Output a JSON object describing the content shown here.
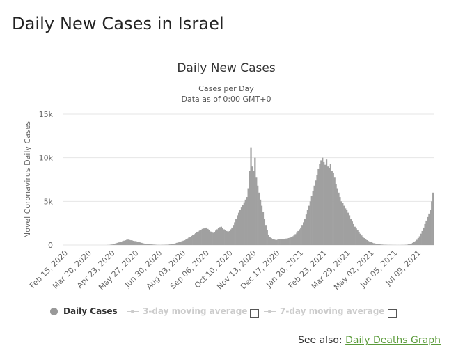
{
  "page": {
    "title": "Daily New Cases in Israel",
    "see_also_prefix": "See also:",
    "see_also_link": "Daily Deaths Graph"
  },
  "legend": {
    "daily": "Daily Cases",
    "ma3": "3-day moving average",
    "ma7": "7-day moving average"
  },
  "colors": {
    "bar": "#a0a0a0",
    "grid": "#e6e6e6",
    "link": "#5b9b3a"
  },
  "chart_data": {
    "type": "bar",
    "title": "Daily New Cases",
    "subtitle": "Cases per Day",
    "subtitle2": "Data as of 0:00 GMT+0",
    "ylabel": "Novel Coronavirus Daily Cases",
    "xlabel": "",
    "ylim": [
      0,
      15000
    ],
    "y_ticks": [
      0,
      5000,
      10000,
      15000
    ],
    "y_tick_labels": [
      "0",
      "5k",
      "10k",
      "15k"
    ],
    "x_tick_labels": [
      "Feb 15, 2020",
      "Mar 20, 2020",
      "Apr 23, 2020",
      "May 27, 2020",
      "Jun 30, 2020",
      "Aug 03, 2020",
      "Sep 06, 2020",
      "Oct 10, 2020",
      "Nov 13, 2020",
      "Dec 17, 2020",
      "Jan 20, 2021",
      "Feb 23, 2021",
      "Mar 29, 2021",
      "May 02, 2021",
      "Jun 05, 2021",
      "Jul 09, 2021"
    ],
    "start_date": "Feb 15, 2020",
    "interval_days": 34,
    "series": [
      {
        "name": "Daily Cases",
        "values": [
          0,
          0,
          0,
          0,
          0,
          0,
          0,
          0,
          0,
          0,
          0,
          0,
          0,
          0,
          0,
          0,
          0,
          0,
          0,
          0,
          0,
          0,
          0,
          0,
          0,
          0,
          0,
          0,
          0,
          0,
          0,
          0,
          0,
          10,
          20,
          40,
          60,
          100,
          150,
          200,
          250,
          300,
          350,
          400,
          450,
          500,
          550,
          600,
          620,
          580,
          550,
          520,
          480,
          450,
          420,
          380,
          340,
          300,
          250,
          200,
          170,
          150,
          120,
          100,
          80,
          70,
          60,
          50,
          40,
          30,
          20,
          15,
          15,
          20,
          25,
          30,
          35,
          40,
          50,
          70,
          100,
          130,
          160,
          200,
          250,
          300,
          350,
          400,
          450,
          500,
          550,
          650,
          750,
          850,
          950,
          1050,
          1150,
          1250,
          1350,
          1450,
          1550,
          1650,
          1750,
          1850,
          1900,
          1950,
          2000,
          1850,
          1700,
          1550,
          1450,
          1400,
          1500,
          1650,
          1800,
          1950,
          2050,
          2100,
          1950,
          1800,
          1700,
          1600,
          1500,
          1600,
          1800,
          2000,
          2300,
          2600,
          3000,
          3400,
          3700,
          4000,
          4300,
          4600,
          4900,
          5200,
          5500,
          6500,
          8500,
          11200,
          9000,
          8500,
          10000,
          7800,
          6800,
          6000,
          5200,
          4500,
          3800,
          3000,
          2300,
          1700,
          1200,
          950,
          800,
          700,
          650,
          600,
          580,
          620,
          640,
          660,
          680,
          700,
          720,
          740,
          760,
          800,
          850,
          900,
          1000,
          1100,
          1250,
          1400,
          1600,
          1800,
          2000,
          2300,
          2600,
          3000,
          3500,
          4000,
          4500,
          5000,
          5600,
          6200,
          6800,
          7400,
          8000,
          8700,
          9300,
          9700,
          10000,
          9500,
          9200,
          9800,
          9000,
          8800,
          9300,
          8500,
          8300,
          7800,
          7000,
          6500,
          6000,
          5500,
          5000,
          4800,
          4500,
          4200,
          4000,
          3700,
          3400,
          3000,
          2700,
          2400,
          2100,
          1900,
          1700,
          1500,
          1300,
          1100,
          950,
          800,
          680,
          560,
          460,
          380,
          320,
          260,
          210,
          170,
          140,
          110,
          90,
          70,
          55,
          45,
          35,
          30,
          25,
          20,
          18,
          15,
          12,
          10,
          10,
          8,
          8,
          8,
          10,
          12,
          15,
          20,
          30,
          50,
          80,
          120,
          180,
          250,
          350,
          450,
          600,
          800,
          1000,
          1300,
          1600,
          2000,
          2400,
          2800,
          3200,
          3600,
          4000,
          5000,
          6000
        ]
      }
    ]
  }
}
